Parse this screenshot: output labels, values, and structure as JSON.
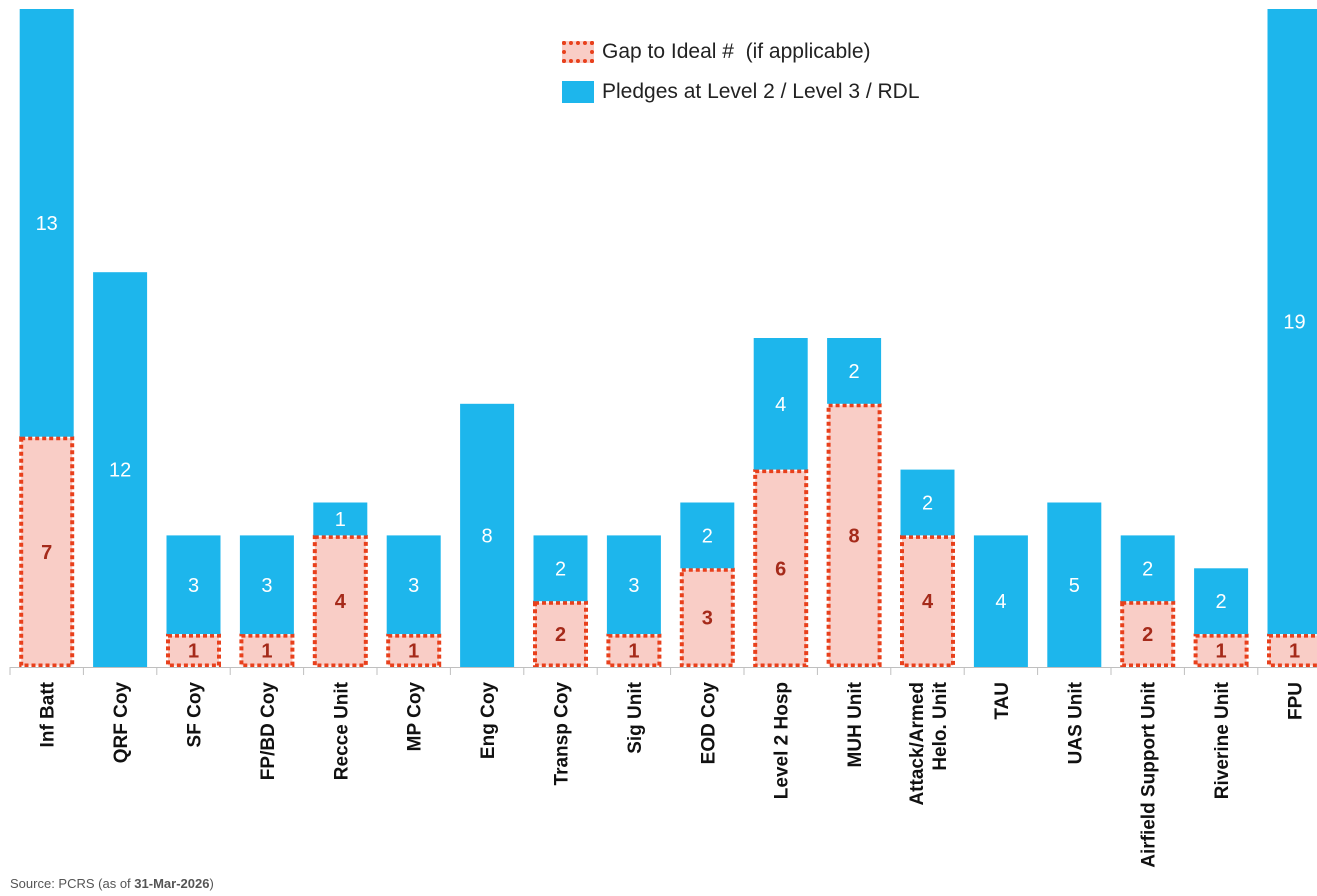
{
  "legend": {
    "gap_label": "Gap to Ideal #  (if applicable)",
    "pledges_label": "Pledges at Level 2 / Level 3 / RDL"
  },
  "source": {
    "prefix": "Source: PCRS (as of ",
    "date": "31-Mar-2026",
    "suffix": ")"
  },
  "colors": {
    "pledges": "#1db6ec",
    "gap_fill": "#f9cdc6",
    "gap_border": "#e8401c",
    "gap_text": "#a52a1a",
    "axis": "#bfbfbf"
  },
  "chart_data": {
    "type": "bar",
    "stacked": true,
    "categories": [
      [
        "Inf Batt"
      ],
      [
        "QRF Coy"
      ],
      [
        "SF Coy"
      ],
      [
        "FP/BD Coy"
      ],
      [
        "Recce Unit"
      ],
      [
        "MP Coy"
      ],
      [
        "Eng Coy"
      ],
      [
        "Transp Coy"
      ],
      [
        "Sig Unit"
      ],
      [
        "EOD Coy"
      ],
      [
        "Level 2 Hosp"
      ],
      [
        "MUH Unit"
      ],
      [
        "Attack/Armed",
        "Helo. Unit"
      ],
      [
        "TAU"
      ],
      [
        "UAS Unit"
      ],
      [
        "Airfield Support Unit"
      ],
      [
        "Riverine Unit"
      ],
      [
        "FPU"
      ]
    ],
    "series": [
      {
        "name": "Gap to Ideal #  (if applicable)",
        "values": [
          7,
          0,
          1,
          1,
          4,
          1,
          0,
          2,
          1,
          3,
          6,
          8,
          4,
          0,
          0,
          2,
          1,
          1
        ]
      },
      {
        "name": "Pledges at Level 2 / Level 3 / RDL",
        "values": [
          13,
          12,
          3,
          3,
          1,
          3,
          8,
          2,
          3,
          2,
          4,
          2,
          2,
          4,
          5,
          2,
          2,
          19
        ]
      }
    ],
    "ylim": [
      0,
      20
    ]
  }
}
